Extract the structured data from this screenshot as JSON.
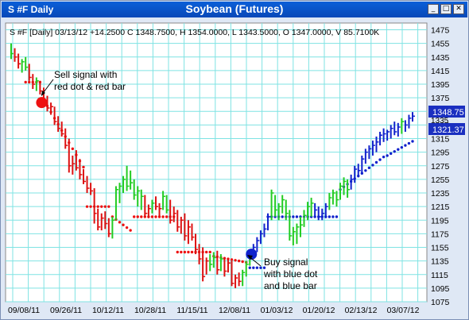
{
  "window": {
    "symbol_tab": "S #F Daily",
    "title": "Soybean (Futures)",
    "btn_min": "_",
    "btn_max": "□",
    "btn_close": "✕"
  },
  "header": {
    "text": "S #F [Daily] 03/13/12 +14.2500 C 1348.7500, H 1354.0000, L 1343.5000, O 1347.0000, V 85.7100K"
  },
  "annotations": {
    "sell": [
      "Sell signal with",
      "red dot & red bar"
    ],
    "buy": [
      "Buy signal",
      "with blue dot",
      "and blue bar"
    ]
  },
  "price_labels": {
    "upper": "1348.75",
    "lower": "1321.37",
    "hidden": "1335"
  },
  "colors": {
    "up": "#22cc22",
    "down": "#dd1111",
    "buy": "#1122cc",
    "sell": "#ee1111",
    "grid": "#7fe3e3",
    "label_box": "#1a2fc0"
  },
  "chart_data": {
    "type": "ohlc-bar",
    "ylim": [
      1075,
      1485
    ],
    "yticks": [
      1475,
      1455,
      1435,
      1415,
      1395,
      1375,
      1355,
      1335,
      1315,
      1295,
      1275,
      1255,
      1235,
      1215,
      1195,
      1175,
      1155,
      1135,
      1115,
      1095,
      1075
    ],
    "xticklabels": [
      "09/08/11",
      "09/26/11",
      "10/12/11",
      "10/28/11",
      "11/15/11",
      "12/08/11",
      "01/03/12",
      "01/20/12",
      "02/13/12",
      "03/07/12"
    ],
    "bars": [
      {
        "h": 1455,
        "l": 1432,
        "c": 1440,
        "col": "up"
      },
      {
        "h": 1448,
        "l": 1428,
        "c": 1435,
        "col": "down"
      },
      {
        "h": 1440,
        "l": 1418,
        "c": 1425,
        "col": "down"
      },
      {
        "h": 1432,
        "l": 1412,
        "c": 1428,
        "col": "up"
      },
      {
        "h": 1435,
        "l": 1415,
        "c": 1420,
        "col": "up"
      },
      {
        "h": 1425,
        "l": 1400,
        "c": 1405,
        "col": "down"
      },
      {
        "h": 1410,
        "l": 1388,
        "c": 1395,
        "col": "down"
      },
      {
        "h": 1405,
        "l": 1385,
        "c": 1400,
        "col": "up"
      },
      {
        "h": 1400,
        "l": 1380,
        "c": 1385,
        "col": "down"
      },
      {
        "h": 1390,
        "l": 1365,
        "c": 1372,
        "col": "down"
      },
      {
        "h": 1378,
        "l": 1355,
        "c": 1360,
        "col": "down"
      },
      {
        "h": 1368,
        "l": 1350,
        "c": 1362,
        "col": "down"
      },
      {
        "h": 1362,
        "l": 1335,
        "c": 1340,
        "col": "down"
      },
      {
        "h": 1348,
        "l": 1325,
        "c": 1330,
        "col": "down"
      },
      {
        "h": 1340,
        "l": 1318,
        "c": 1322,
        "col": "down"
      },
      {
        "h": 1330,
        "l": 1300,
        "c": 1305,
        "col": "down"
      },
      {
        "h": 1315,
        "l": 1265,
        "c": 1275,
        "col": "down"
      },
      {
        "h": 1290,
        "l": 1262,
        "c": 1278,
        "col": "down"
      },
      {
        "h": 1298,
        "l": 1268,
        "c": 1272,
        "col": "down"
      },
      {
        "h": 1285,
        "l": 1255,
        "c": 1262,
        "col": "down"
      },
      {
        "h": 1270,
        "l": 1248,
        "c": 1252,
        "col": "down"
      },
      {
        "h": 1260,
        "l": 1235,
        "c": 1242,
        "col": "down"
      },
      {
        "h": 1250,
        "l": 1232,
        "c": 1238,
        "col": "down"
      },
      {
        "h": 1242,
        "l": 1190,
        "c": 1205,
        "col": "down"
      },
      {
        "h": 1212,
        "l": 1180,
        "c": 1185,
        "col": "down"
      },
      {
        "h": 1205,
        "l": 1180,
        "c": 1198,
        "col": "down"
      },
      {
        "h": 1208,
        "l": 1182,
        "c": 1190,
        "col": "down"
      },
      {
        "h": 1198,
        "l": 1170,
        "c": 1175,
        "col": "down"
      },
      {
        "h": 1200,
        "l": 1168,
        "c": 1195,
        "col": "up"
      },
      {
        "h": 1245,
        "l": 1195,
        "c": 1240,
        "col": "up"
      },
      {
        "h": 1250,
        "l": 1220,
        "c": 1245,
        "col": "up"
      },
      {
        "h": 1260,
        "l": 1235,
        "c": 1255,
        "col": "up"
      },
      {
        "h": 1275,
        "l": 1238,
        "c": 1245,
        "col": "up"
      },
      {
        "h": 1268,
        "l": 1240,
        "c": 1250,
        "col": "up"
      },
      {
        "h": 1255,
        "l": 1225,
        "c": 1232,
        "col": "up"
      },
      {
        "h": 1245,
        "l": 1215,
        "c": 1238,
        "col": "up"
      },
      {
        "h": 1240,
        "l": 1210,
        "c": 1230,
        "col": "up"
      },
      {
        "h": 1232,
        "l": 1200,
        "c": 1205,
        "col": "down"
      },
      {
        "h": 1218,
        "l": 1198,
        "c": 1212,
        "col": "down"
      },
      {
        "h": 1225,
        "l": 1205,
        "c": 1220,
        "col": "up"
      },
      {
        "h": 1230,
        "l": 1210,
        "c": 1215,
        "col": "down"
      },
      {
        "h": 1220,
        "l": 1200,
        "c": 1212,
        "col": "down"
      },
      {
        "h": 1238,
        "l": 1210,
        "c": 1230,
        "col": "up"
      },
      {
        "h": 1232,
        "l": 1205,
        "c": 1210,
        "col": "up"
      },
      {
        "h": 1225,
        "l": 1190,
        "c": 1195,
        "col": "down"
      },
      {
        "h": 1215,
        "l": 1192,
        "c": 1205,
        "col": "down"
      },
      {
        "h": 1210,
        "l": 1178,
        "c": 1185,
        "col": "down"
      },
      {
        "h": 1200,
        "l": 1175,
        "c": 1195,
        "col": "down"
      },
      {
        "h": 1205,
        "l": 1165,
        "c": 1172,
        "col": "down"
      },
      {
        "h": 1195,
        "l": 1160,
        "c": 1185,
        "col": "down"
      },
      {
        "h": 1190,
        "l": 1165,
        "c": 1170,
        "col": "down"
      },
      {
        "h": 1175,
        "l": 1145,
        "c": 1152,
        "col": "down"
      },
      {
        "h": 1160,
        "l": 1130,
        "c": 1138,
        "col": "down"
      },
      {
        "h": 1155,
        "l": 1105,
        "c": 1112,
        "col": "down"
      },
      {
        "h": 1140,
        "l": 1115,
        "c": 1135,
        "col": "down"
      },
      {
        "h": 1145,
        "l": 1120,
        "c": 1130,
        "col": "up"
      },
      {
        "h": 1148,
        "l": 1125,
        "c": 1140,
        "col": "up"
      },
      {
        "h": 1150,
        "l": 1115,
        "c": 1122,
        "col": "down"
      },
      {
        "h": 1145,
        "l": 1120,
        "c": 1138,
        "col": "up"
      },
      {
        "h": 1140,
        "l": 1112,
        "c": 1120,
        "col": "down"
      },
      {
        "h": 1138,
        "l": 1118,
        "c": 1132,
        "col": "down"
      },
      {
        "h": 1135,
        "l": 1098,
        "c": 1102,
        "col": "down"
      },
      {
        "h": 1115,
        "l": 1095,
        "c": 1110,
        "col": "down"
      },
      {
        "h": 1118,
        "l": 1098,
        "c": 1105,
        "col": "down"
      },
      {
        "h": 1122,
        "l": 1098,
        "c": 1118,
        "col": "up"
      },
      {
        "h": 1135,
        "l": 1112,
        "c": 1130,
        "col": "up"
      },
      {
        "h": 1145,
        "l": 1128,
        "c": 1140,
        "col": "up"
      },
      {
        "h": 1160,
        "l": 1138,
        "c": 1155,
        "col": "buy"
      },
      {
        "h": 1170,
        "l": 1148,
        "c": 1165,
        "col": "buy"
      },
      {
        "h": 1180,
        "l": 1160,
        "c": 1175,
        "col": "buy"
      },
      {
        "h": 1190,
        "l": 1170,
        "c": 1182,
        "col": "buy"
      },
      {
        "h": 1205,
        "l": 1180,
        "c": 1200,
        "col": "buy"
      },
      {
        "h": 1240,
        "l": 1195,
        "c": 1235,
        "col": "up"
      },
      {
        "h": 1232,
        "l": 1200,
        "c": 1210,
        "col": "up"
      },
      {
        "h": 1220,
        "l": 1195,
        "c": 1215,
        "col": "up"
      },
      {
        "h": 1232,
        "l": 1205,
        "c": 1225,
        "col": "up"
      },
      {
        "h": 1225,
        "l": 1195,
        "c": 1205,
        "col": "up"
      },
      {
        "h": 1210,
        "l": 1165,
        "c": 1172,
        "col": "up"
      },
      {
        "h": 1185,
        "l": 1158,
        "c": 1178,
        "col": "up"
      },
      {
        "h": 1190,
        "l": 1160,
        "c": 1185,
        "col": "up"
      },
      {
        "h": 1200,
        "l": 1170,
        "c": 1188,
        "col": "up"
      },
      {
        "h": 1210,
        "l": 1185,
        "c": 1202,
        "col": "up"
      },
      {
        "h": 1222,
        "l": 1195,
        "c": 1215,
        "col": "up"
      },
      {
        "h": 1228,
        "l": 1200,
        "c": 1220,
        "col": "up"
      },
      {
        "h": 1220,
        "l": 1200,
        "c": 1210,
        "col": "buy"
      },
      {
        "h": 1215,
        "l": 1195,
        "c": 1200,
        "col": "buy"
      },
      {
        "h": 1212,
        "l": 1195,
        "c": 1205,
        "col": "buy"
      },
      {
        "h": 1220,
        "l": 1198,
        "c": 1215,
        "col": "buy"
      },
      {
        "h": 1235,
        "l": 1210,
        "c": 1228,
        "col": "up"
      },
      {
        "h": 1240,
        "l": 1218,
        "c": 1235,
        "col": "up"
      },
      {
        "h": 1238,
        "l": 1215,
        "c": 1225,
        "col": "up"
      },
      {
        "h": 1250,
        "l": 1225,
        "c": 1245,
        "col": "up"
      },
      {
        "h": 1258,
        "l": 1232,
        "c": 1252,
        "col": "up"
      },
      {
        "h": 1255,
        "l": 1228,
        "c": 1240,
        "col": "up"
      },
      {
        "h": 1262,
        "l": 1240,
        "c": 1255,
        "col": "buy"
      },
      {
        "h": 1275,
        "l": 1250,
        "c": 1270,
        "col": "buy"
      },
      {
        "h": 1278,
        "l": 1258,
        "c": 1268,
        "col": "buy"
      },
      {
        "h": 1290,
        "l": 1262,
        "c": 1285,
        "col": "buy"
      },
      {
        "h": 1300,
        "l": 1278,
        "c": 1295,
        "col": "buy"
      },
      {
        "h": 1305,
        "l": 1285,
        "c": 1300,
        "col": "buy"
      },
      {
        "h": 1312,
        "l": 1290,
        "c": 1305,
        "col": "buy"
      },
      {
        "h": 1318,
        "l": 1295,
        "c": 1310,
        "col": "buy"
      },
      {
        "h": 1325,
        "l": 1305,
        "c": 1320,
        "col": "buy"
      },
      {
        "h": 1330,
        "l": 1310,
        "c": 1322,
        "col": "buy"
      },
      {
        "h": 1328,
        "l": 1312,
        "c": 1325,
        "col": "buy"
      },
      {
        "h": 1335,
        "l": 1315,
        "c": 1330,
        "col": "buy"
      },
      {
        "h": 1340,
        "l": 1320,
        "c": 1325,
        "col": "buy"
      },
      {
        "h": 1338,
        "l": 1318,
        "c": 1332,
        "col": "buy"
      },
      {
        "h": 1345,
        "l": 1322,
        "c": 1340,
        "col": "up"
      },
      {
        "h": 1342,
        "l": 1325,
        "c": 1335,
        "col": "buy"
      },
      {
        "h": 1350,
        "l": 1330,
        "c": 1345,
        "col": "buy"
      },
      {
        "h": 1354,
        "l": 1340,
        "c": 1348,
        "col": "buy"
      }
    ],
    "stop_segments": [
      {
        "from": 4,
        "to": 8,
        "y": 1398,
        "col": "sell"
      },
      {
        "from": 9,
        "to": 20,
        "y": 1372,
        "col": "sell",
        "step": -9
      },
      {
        "from": 21,
        "to": 27,
        "y": 1215,
        "col": "sell"
      },
      {
        "from": 28,
        "to": 33,
        "y": 1200,
        "col": "sell",
        "step": -4
      },
      {
        "from": 34,
        "to": 45,
        "y": 1200,
        "col": "sell"
      },
      {
        "from": 46,
        "to": 55,
        "y": 1148,
        "col": "sell"
      },
      {
        "from": 56,
        "to": 65,
        "y": 1142,
        "col": "sell",
        "step": -1
      },
      {
        "from": 66,
        "to": 70,
        "y": 1125,
        "col": "buy"
      },
      {
        "from": 71,
        "to": 80,
        "y": 1200,
        "col": "buy"
      },
      {
        "from": 81,
        "to": 90,
        "y": 1200,
        "col": "buy"
      },
      {
        "from": 91,
        "to": 103,
        "y": 1240,
        "col": "buy",
        "step": 4
      },
      {
        "from": 104,
        "to": 111,
        "y": 1290,
        "col": "buy",
        "step": 3
      }
    ],
    "signals": [
      {
        "type": "sell",
        "bar": 8,
        "y": 1368
      },
      {
        "type": "buy",
        "bar": 66,
        "y": 1145
      }
    ]
  }
}
